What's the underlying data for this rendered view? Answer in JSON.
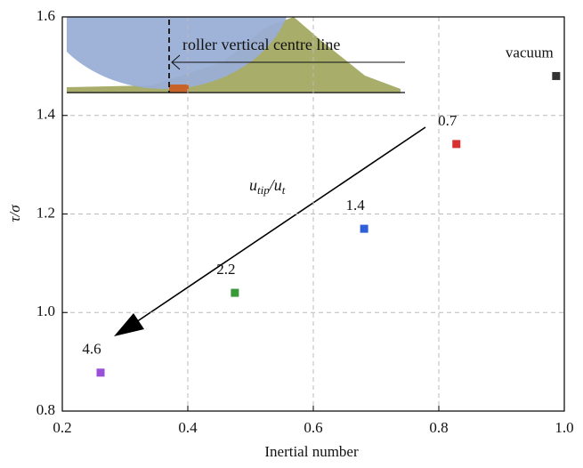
{
  "chart_data": {
    "type": "scatter",
    "xlabel": "Inertial number",
    "ylabel": "τ/σ",
    "x": [
      0.987,
      0.828,
      0.681,
      0.475,
      0.261
    ],
    "values": [
      1.48,
      1.342,
      1.17,
      1.04,
      0.878
    ],
    "colors": [
      "#333333",
      "#d93030",
      "#2f5fd8",
      "#3a9a3a",
      "#9a4fd8"
    ],
    "point_labels": [
      "vacuum",
      "0.7",
      "1.4",
      "2.2",
      "4.6"
    ],
    "arrow_label": [
      "u",
      "tip",
      "/u",
      "t"
    ],
    "inset_label": "roller vertical centre line",
    "xlim": [
      0.2,
      1.0
    ],
    "xticks": [
      0.2,
      0.4,
      0.6,
      0.8,
      {
        "value": 1.0,
        "label": "1.0"
      }
    ],
    "ylim": [
      0.8,
      1.6
    ],
    "yticks": [
      0.8,
      {
        "value": 1.0,
        "label": "1.0"
      },
      1.2,
      1.4,
      1.6
    ],
    "grid": true
  }
}
